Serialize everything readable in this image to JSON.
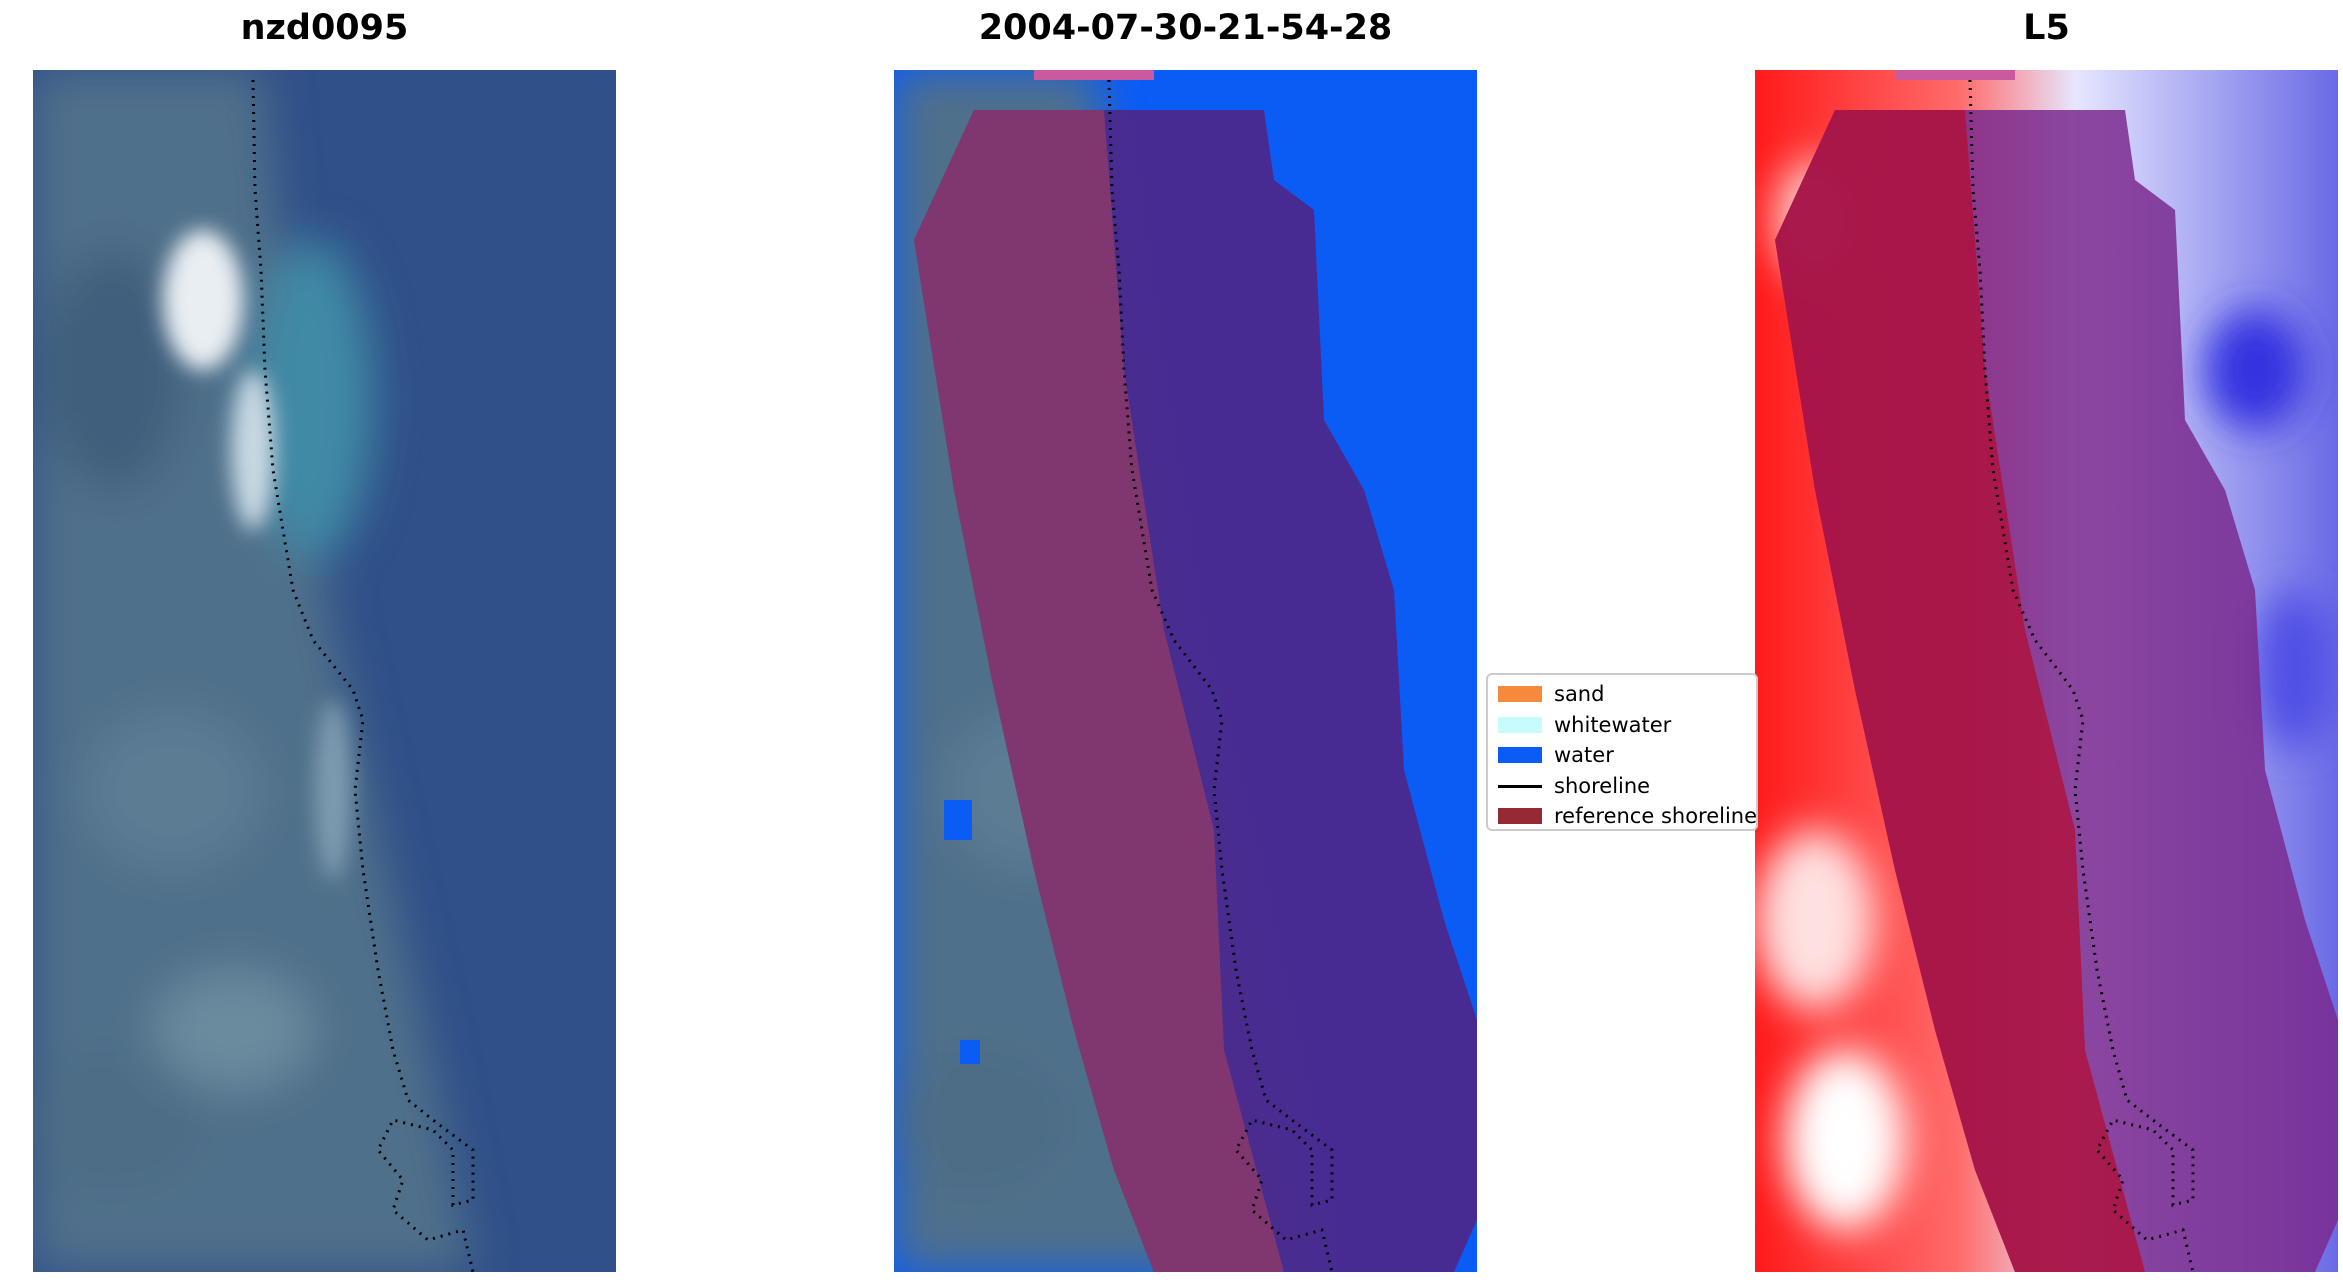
{
  "panels": [
    {
      "title": "nzd0095"
    },
    {
      "title": "2004-07-30-21-54-28"
    },
    {
      "title": "L5"
    }
  ],
  "legend": {
    "items": [
      {
        "label": "sand",
        "type": "patch",
        "color": "#f58a3c"
      },
      {
        "label": "whitewater",
        "type": "patch",
        "color": "#c8fbfb"
      },
      {
        "label": "water",
        "type": "patch",
        "color": "#0a5cf5"
      },
      {
        "label": "shoreline",
        "type": "line",
        "color": "#000000"
      },
      {
        "label": "reference shoreline",
        "type": "patch",
        "color": "#952a35"
      }
    ]
  }
}
